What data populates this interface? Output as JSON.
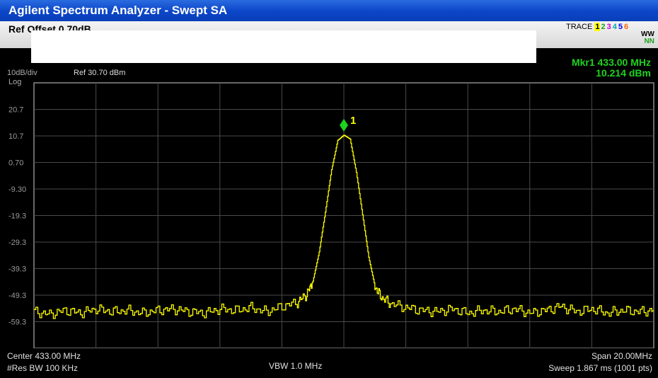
{
  "window_title": "Agilent Spectrum Analyzer - Swept SA",
  "header": {
    "ref_offset_bold": "Ref Offset 0.70dB",
    "trace_label": "TRACE",
    "trace_numbers": [
      "1",
      "2",
      "3",
      "4",
      "5",
      "6"
    ],
    "trace_type_row1": "WW",
    "trace_type_row2": "NN"
  },
  "scale": {
    "ref_offset": "Ref Offset 0.70dB",
    "per_div": "10dB/div",
    "ref_level": "Ref 30.70 dBm",
    "mode": "Log"
  },
  "marker": {
    "label": "1",
    "readout_freq": "Mkr1 433.00 MHz",
    "readout_amp": "10.214 dBm"
  },
  "footer": {
    "center": "Center 433.00 MHz",
    "res_bw": "#Res BW 100 KHz",
    "vbw": "VBW 1.0 MHz",
    "span": "Span 20.00MHz",
    "sweep": "Sweep 1.867 ms (1001 pts)"
  },
  "chart_data": {
    "type": "line",
    "x_unit": "MHz",
    "y_unit": "dBm",
    "xlim": [
      423.0,
      443.0
    ],
    "ylim": [
      -69.3,
      30.7
    ],
    "y_ticks": [
      "20.7",
      "10.7",
      "0.70",
      "-9.30",
      "-19.3",
      "-29.3",
      "-39.3",
      "-49.3",
      "-59.3"
    ],
    "series": [
      {
        "x": [
          423.0,
          423.5,
          424.0,
          424.5,
          425.0,
          425.5,
          426.0,
          426.5,
          427.0,
          427.5,
          428.0,
          428.5,
          429.0,
          429.5,
          430.0,
          430.5,
          431.0,
          431.5,
          431.8,
          432.0,
          432.2,
          432.4,
          432.6,
          432.8,
          433.0,
          433.2,
          433.4,
          433.6,
          433.8,
          434.0,
          434.2,
          434.5,
          435.0,
          435.5,
          436.0,
          436.5,
          437.0,
          437.5,
          438.0,
          438.5,
          439.0,
          439.5,
          440.0,
          440.5,
          441.0,
          441.5,
          442.0,
          442.5,
          443.0
        ],
        "y": [
          -55.5,
          -56.5,
          -55.0,
          -56.0,
          -54.5,
          -55.5,
          -55.0,
          -56.0,
          -55.0,
          -54.5,
          -55.5,
          -56.0,
          -54.5,
          -55.0,
          -54.0,
          -55.5,
          -53.5,
          -52.0,
          -49.0,
          -44.0,
          -33.0,
          -18.0,
          -2.0,
          9.0,
          11.0,
          9.5,
          -3.0,
          -19.0,
          -35.0,
          -46.0,
          -50.0,
          -52.5,
          -54.0,
          -55.0,
          -55.5,
          -54.5,
          -56.0,
          -55.0,
          -55.5,
          -54.5,
          -56.0,
          -55.0,
          -53.5,
          -55.5,
          -54.5,
          -56.0,
          -55.0,
          -55.5,
          -55.0
        ]
      }
    ]
  }
}
